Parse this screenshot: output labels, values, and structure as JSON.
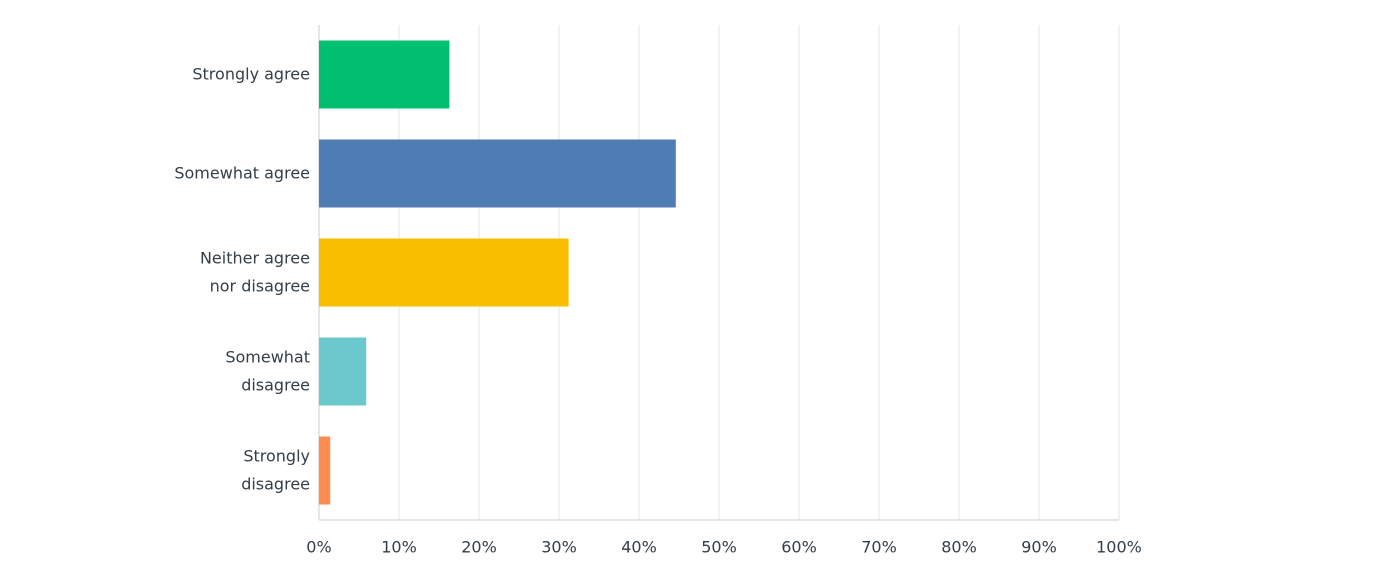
{
  "chart_data": {
    "type": "hbar",
    "categories": [
      "Strongly agree",
      "Somewhat agree",
      "Neither agree\nnor disagree",
      "Somewhat\ndisagree",
      "Strongly\ndisagree"
    ],
    "values": [
      16.3,
      44.6,
      31.2,
      5.9,
      1.4
    ],
    "colors": [
      "#00bf6f",
      "#507cb6",
      "#f9be00",
      "#6bc8cd",
      "#ff8b4f"
    ],
    "xlim": [
      0,
      100
    ],
    "xticks": [
      {
        "value": 0,
        "label": "0%"
      },
      {
        "value": 10,
        "label": "10%"
      },
      {
        "value": 20,
        "label": "20%"
      },
      {
        "value": 30,
        "label": "30%"
      },
      {
        "value": 40,
        "label": "40%"
      },
      {
        "value": 50,
        "label": "50%"
      },
      {
        "value": 60,
        "label": "60%"
      },
      {
        "value": 70,
        "label": "70%"
      },
      {
        "value": 80,
        "label": "80%"
      },
      {
        "value": 90,
        "label": "90%"
      },
      {
        "value": 100,
        "label": "100%"
      }
    ],
    "grid": true
  }
}
